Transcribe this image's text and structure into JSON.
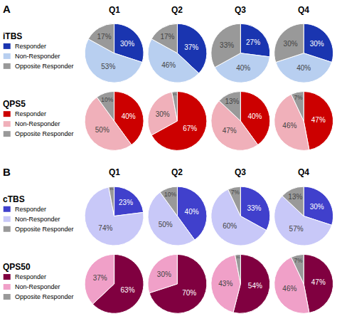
{
  "chart_data": [
    {
      "type": "pie",
      "title": "iTBS",
      "annotations": [
        "A"
      ],
      "categories": [
        "Responder",
        "Non-Responder",
        "Opposite Responder"
      ],
      "colors": [
        "#1a35b0",
        "#b8cff0",
        "#999999"
      ],
      "data_labels": true,
      "series": [
        {
          "name": "Q1",
          "values": [
            30,
            53,
            17
          ],
          "value_labels": [
            "30%",
            "53%",
            "17%"
          ]
        },
        {
          "name": "Q2",
          "values": [
            37,
            46,
            17
          ],
          "value_labels": [
            "37%",
            "46%",
            "17%"
          ]
        },
        {
          "name": "Q3",
          "values": [
            27,
            40,
            33
          ],
          "value_labels": [
            "27%",
            "40%",
            "33%"
          ]
        },
        {
          "name": "Q4",
          "values": [
            30,
            40,
            30
          ],
          "value_labels": [
            "30%",
            "40%",
            "30%"
          ]
        }
      ]
    },
    {
      "type": "pie",
      "title": "QPS5",
      "categories": [
        "Responder",
        "Non-Responder",
        "Opposite Responder"
      ],
      "colors": [
        "#cc0000",
        "#f0b0ba",
        "#999999"
      ],
      "data_labels": true,
      "series": [
        {
          "values": [
            40,
            50,
            10
          ],
          "value_labels": [
            "40%",
            "50%",
            "10%"
          ]
        },
        {
          "values": [
            67,
            30,
            3
          ],
          "value_labels": [
            "67%",
            "30%",
            "3%"
          ]
        },
        {
          "values": [
            40,
            47,
            13
          ],
          "value_labels": [
            "40%",
            "47%",
            "13%"
          ]
        },
        {
          "values": [
            47,
            46,
            7
          ],
          "value_labels": [
            "47%",
            "46%",
            "7%"
          ]
        }
      ]
    },
    {
      "type": "pie",
      "title": "cTBS",
      "annotations": [
        "B"
      ],
      "categories": [
        "Responder",
        "Non-Responder",
        "Opposite Responder"
      ],
      "colors": [
        "#4040cc",
        "#c8c8f8",
        "#999999"
      ],
      "data_labels": true,
      "series": [
        {
          "name": "Q1",
          "values": [
            23,
            74,
            3
          ],
          "value_labels": [
            "23%",
            "74%",
            "3%"
          ]
        },
        {
          "name": "Q2",
          "values": [
            40,
            50,
            10
          ],
          "value_labels": [
            "40%",
            "50%",
            "10%"
          ]
        },
        {
          "name": "Q3",
          "values": [
            33,
            60,
            7
          ],
          "value_labels": [
            "33%",
            "60%",
            "7%"
          ]
        },
        {
          "name": "Q4",
          "values": [
            30,
            57,
            13
          ],
          "value_labels": [
            "30%",
            "57%",
            "13%"
          ]
        }
      ]
    },
    {
      "type": "pie",
      "title": "QPS50",
      "categories": [
        "Responder",
        "Non-Responder",
        "Opposite Responder"
      ],
      "colors": [
        "#800040",
        "#f0a0c8",
        "#999999"
      ],
      "data_labels": true,
      "series": [
        {
          "values": [
            63,
            37,
            0
          ],
          "value_labels": [
            "63%",
            "37%",
            null
          ]
        },
        {
          "values": [
            70,
            30,
            0
          ],
          "value_labels": [
            "70%",
            "30%",
            null
          ]
        },
        {
          "values": [
            54,
            43,
            3
          ],
          "value_labels": [
            "54%",
            "43%",
            "3%"
          ]
        },
        {
          "values": [
            47,
            46,
            7
          ],
          "value_labels": [
            "47%",
            "46%",
            "7%"
          ]
        }
      ]
    }
  ]
}
